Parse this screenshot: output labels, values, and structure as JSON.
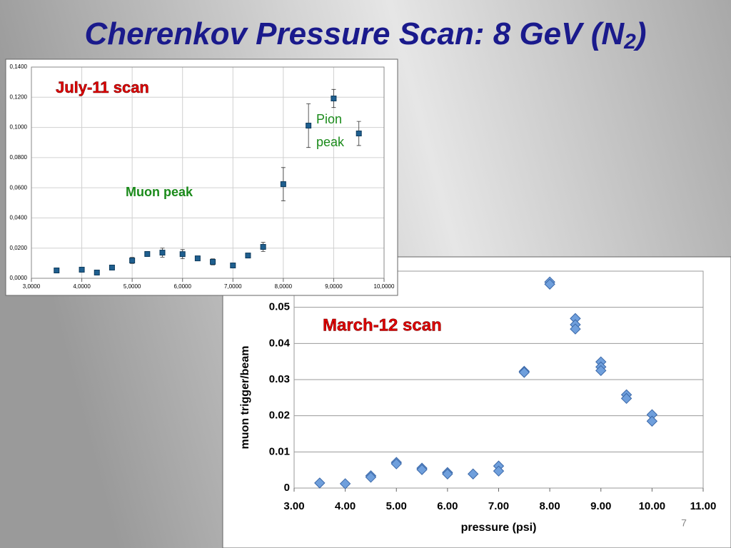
{
  "title": "Cherenkov Pressure Scan: 8 GeV (N",
  "title_subscript": "2",
  "title_end": ")",
  "page_number": "7",
  "chart_data": [
    {
      "type": "scatter",
      "title": "July-11 scan",
      "annotations": [
        "Muon peak",
        "Pion peak"
      ],
      "x": [
        3.5,
        4.0,
        4.3,
        4.6,
        5.0,
        5.3,
        5.6,
        6.0,
        6.3,
        6.6,
        7.0,
        7.3,
        7.6,
        8.0,
        8.5,
        9.0,
        9.5
      ],
      "values": [
        0.0052,
        0.0057,
        0.0038,
        0.0071,
        0.0118,
        0.0161,
        0.017,
        0.016,
        0.0132,
        0.0109,
        0.0085,
        0.0151,
        0.0208,
        0.0624,
        0.1012,
        0.1192,
        0.096
      ],
      "errors": [
        0.0015,
        0.0015,
        0.0015,
        0.0015,
        0.002,
        0.0015,
        0.003,
        0.003,
        0.0015,
        0.002,
        0.0015,
        0.0015,
        0.003,
        0.011,
        0.0145,
        0.006,
        0.008
      ],
      "color": "#1f5f8f",
      "xlim": [
        3,
        10
      ],
      "ylim": [
        0,
        0.14
      ],
      "xticks": [
        {
          "value": 3,
          "label": "3,0000"
        },
        {
          "value": 4,
          "label": "4,0000"
        },
        {
          "value": 5,
          "label": "5,0000"
        },
        {
          "value": 6,
          "label": "6,0000"
        },
        {
          "value": 7,
          "label": "7,0000"
        },
        {
          "value": 8,
          "label": "8,0000"
        },
        {
          "value": 9,
          "label": "9,0000"
        },
        {
          "value": 10,
          "label": "10,0000"
        }
      ],
      "yticks": [
        {
          "value": 0,
          "label": "0,0000"
        },
        {
          "value": 0.02,
          "label": "0,0200"
        },
        {
          "value": 0.04,
          "label": "0,0400"
        },
        {
          "value": 0.06,
          "label": "0,0600"
        },
        {
          "value": 0.08,
          "label": "0,0800"
        },
        {
          "value": 0.1,
          "label": "0,1000"
        },
        {
          "value": 0.12,
          "label": "0,1200"
        },
        {
          "value": 0.14,
          "label": "0,1400"
        }
      ],
      "grid": true
    },
    {
      "type": "scatter",
      "title": "March-12 scan",
      "x_label": "pressure (psi)",
      "y_label": "muon trigger/beam",
      "x": [
        3.5,
        4.0,
        4.5,
        4.5,
        5.0,
        5.0,
        5.5,
        5.5,
        6.0,
        6.0,
        6.5,
        7.0,
        7.0,
        7.5,
        7.5,
        8.0,
        8.0,
        8.5,
        8.5,
        8.5,
        9.0,
        9.0,
        9.0,
        9.5,
        9.5,
        10.0,
        10.0
      ],
      "values": [
        0.0014,
        0.0012,
        0.0034,
        0.003,
        0.0071,
        0.0067,
        0.0055,
        0.0051,
        0.0043,
        0.0039,
        0.0039,
        0.0061,
        0.0047,
        0.0323,
        0.032,
        0.057,
        0.0564,
        0.0469,
        0.0452,
        0.044,
        0.0349,
        0.0335,
        0.0325,
        0.0258,
        0.0248,
        0.0203,
        0.0185
      ],
      "color": "#6f9fdc",
      "xlim": [
        3,
        11
      ],
      "ylim": [
        0,
        0.06
      ],
      "xticks": [
        {
          "value": 3,
          "label": "3.00"
        },
        {
          "value": 4,
          "label": "4.00"
        },
        {
          "value": 5,
          "label": "5.00"
        },
        {
          "value": 6,
          "label": "6.00"
        },
        {
          "value": 7,
          "label": "7.00"
        },
        {
          "value": 8,
          "label": "8.00"
        },
        {
          "value": 9,
          "label": "9.00"
        },
        {
          "value": 10,
          "label": "10.00"
        },
        {
          "value": 11,
          "label": "11.00"
        }
      ],
      "yticks": [
        0,
        0.01,
        0.02,
        0.03,
        0.04,
        0.05
      ],
      "grid": true
    }
  ]
}
